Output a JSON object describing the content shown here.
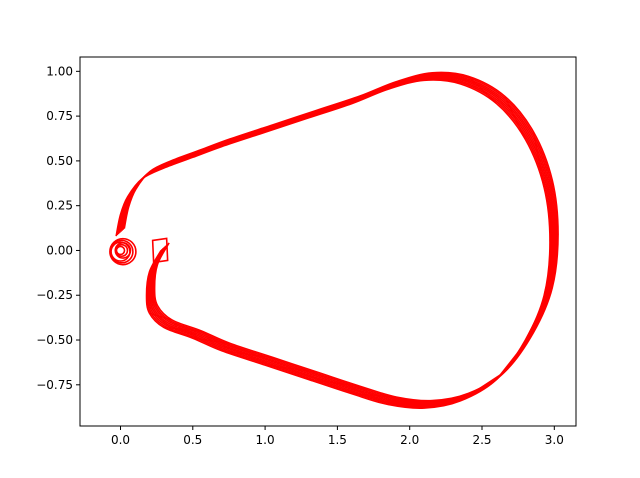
{
  "chart_data": {
    "type": "line",
    "title": "",
    "xlabel": "",
    "ylabel": "",
    "xlim": [
      -0.28,
      3.15
    ],
    "ylim": [
      -0.98,
      1.08
    ],
    "xticks": [
      0.0,
      0.5,
      1.0,
      1.5,
      2.0,
      2.5,
      3.0
    ],
    "xtick_labels": [
      "0.0",
      "0.5",
      "1.0",
      "1.5",
      "2.0",
      "2.5",
      "3.0"
    ],
    "yticks": [
      -0.75,
      -0.5,
      -0.25,
      0.0,
      0.25,
      0.5,
      0.75,
      1.0
    ],
    "ytick_labels": [
      "−0.75",
      "−0.50",
      "−0.25",
      "0.00",
      "0.25",
      "0.50",
      "0.75",
      "1.00"
    ],
    "grid": false,
    "legend": "none",
    "line_color": "#ff0000",
    "series": [
      {
        "x": [
          0.28,
          0.2,
          0.18,
          0.2,
          0.3,
          0.5,
          0.7,
          1.0,
          1.3,
          1.6,
          1.85,
          2.1,
          2.35,
          2.6,
          2.8,
          2.93,
          2.97,
          2.93,
          2.8,
          2.6,
          2.35,
          2.1,
          1.85,
          1.6,
          1.3,
          1.0,
          0.7,
          0.5,
          0.3,
          0.15,
          0.05,
          0.0,
          -0.03
        ],
        "y": [
          0.0,
          -0.12,
          -0.25,
          -0.35,
          -0.43,
          -0.49,
          -0.56,
          -0.64,
          -0.72,
          -0.8,
          -0.86,
          -0.88,
          -0.84,
          -0.72,
          -0.5,
          -0.25,
          0.05,
          0.35,
          0.62,
          0.82,
          0.93,
          0.95,
          0.9,
          0.82,
          0.74,
          0.66,
          0.58,
          0.52,
          0.46,
          0.4,
          0.3,
          0.2,
          0.08
        ]
      }
    ],
    "ribbon_offsets": [
      [
        0.0,
        0.0
      ],
      [
        0.008,
        0.006
      ],
      [
        0.016,
        0.012
      ],
      [
        0.024,
        0.018
      ],
      [
        0.032,
        0.024
      ],
      [
        0.04,
        0.03
      ],
      [
        0.048,
        0.036
      ],
      [
        0.056,
        0.042
      ]
    ],
    "start_glyph": {
      "x": 0.25,
      "y": 0.0
    },
    "coil": {
      "x": 0.0,
      "y": 0.0
    }
  }
}
